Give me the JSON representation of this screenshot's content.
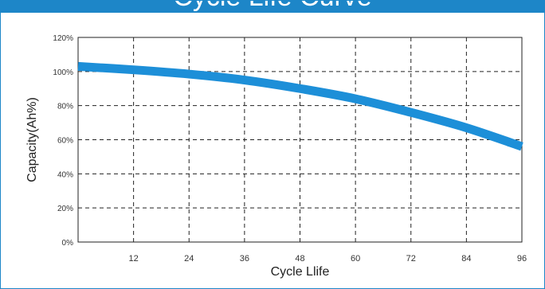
{
  "header": {
    "title": "Cycle Life Curve"
  },
  "colors": {
    "frame": "#1d86c8",
    "curve": "#1d8fd8",
    "grid": "#222222"
  },
  "chart_data": {
    "type": "line",
    "title": "",
    "xlabel": "Cycle Llife",
    "ylabel": "Capacity(Ah%)",
    "xlim": [
      0,
      96
    ],
    "ylim": [
      0,
      120
    ],
    "x_ticks": [
      "12",
      "24",
      "36",
      "48",
      "60",
      "72",
      "84",
      "96"
    ],
    "y_ticks": [
      "0%",
      "20%",
      "40%",
      "60%",
      "80%",
      "100%",
      "120%"
    ],
    "grid": "dashed",
    "series": [
      {
        "x": [
          0,
          12,
          24,
          36,
          48,
          60,
          72,
          84,
          96
        ],
        "values": [
          103,
          101,
          98.5,
          95,
          90,
          84,
          76,
          67,
          56
        ]
      }
    ]
  }
}
